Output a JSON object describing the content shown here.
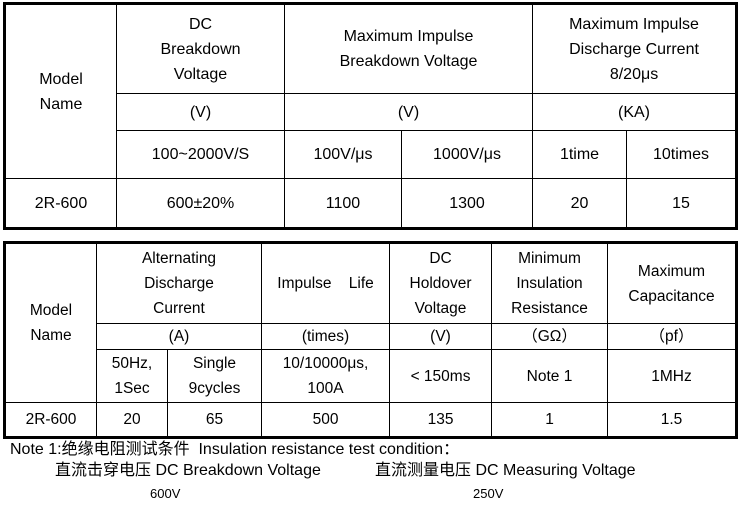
{
  "table1": {
    "header": {
      "model_name": "Model\nName",
      "dc_breakdown": "DC\nBreakdown\nVoltage",
      "max_impulse_voltage": "Maximum Impulse\nBreakdown Voltage",
      "max_impulse_current": "Maximum Impulse\nDischarge Current\n8/20μs"
    },
    "units": [
      "(V)",
      "(V)",
      "(KA)"
    ],
    "conditions": [
      "100~2000V/S",
      "100V/μs",
      "1000V/μs",
      "1time",
      "10times"
    ],
    "rows": [
      [
        "2R-600",
        "600±20%",
        "1100",
        "1300",
        "20",
        "15"
      ]
    ]
  },
  "table2": {
    "header": {
      "model_name": "Model\nName",
      "alternating_current": "Alternating\nDischarge\nCurrent",
      "impulse_life": "Impulse    Life",
      "dc_holdover": "DC\nHoldover\nVoltage",
      "min_insulation": "Minimum\nInsulation\nResistance",
      "max_capacitance": "Maximum\nCapacitance"
    },
    "units": [
      "(A)",
      "(times)",
      "(V)",
      "（GΩ）",
      "（pf）"
    ],
    "conditions": [
      "50Hz,\n1Sec",
      "Single\n9cycles",
      "10/10000μs,\n100A",
      "< 150ms",
      "Note 1",
      "1MHz"
    ],
    "rows": [
      [
        "2R-600",
        "20",
        "65",
        "500",
        "135",
        "1",
        "1.5"
      ]
    ]
  },
  "note": {
    "title": "Note 1:绝缘电阻测试条件  Insulation resistance test condition：",
    "items": [
      {
        "label": "直流击穿电压 DC Breakdown Voltage",
        "value": "600V"
      },
      {
        "label": "直流测量电压 DC Measuring Voltage",
        "value": "250V"
      }
    ]
  }
}
